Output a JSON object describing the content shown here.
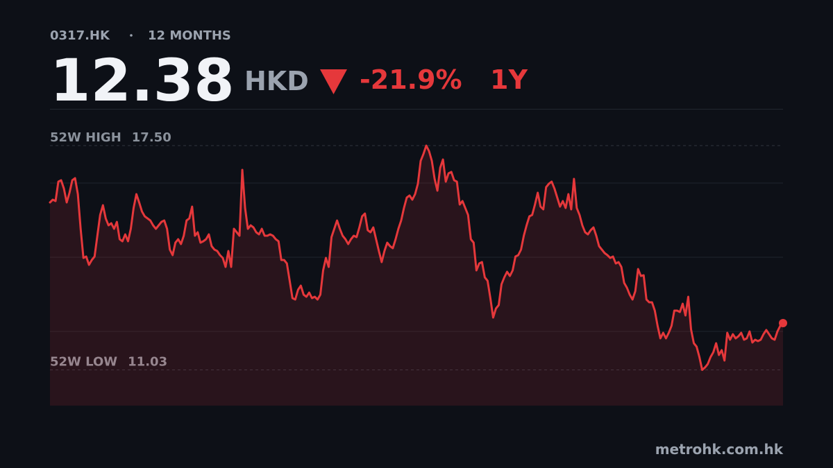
{
  "chart_data": {
    "type": "line",
    "ticker": "0317.HK",
    "period": "12 MONTHS",
    "price": 12.38,
    "currency": "HKD",
    "change": "-21.9%",
    "change_period": "1Y",
    "source": "metrohk.com.hk",
    "color": "#e5383b",
    "ylim": [
      10,
      18.56
    ],
    "grid": true,
    "reference_lines": [
      {
        "name": "52W HIGH",
        "value": 17.5,
        "value_label": "17.50"
      },
      {
        "name": "52W LOW",
        "value": 11.03
      }
    ],
    "values": [
      15.86,
      15.94,
      15.9,
      16.46,
      16.5,
      16.26,
      15.86,
      16.14,
      16.5,
      16.56,
      16.1,
      15.1,
      14.26,
      14.3,
      14.06,
      14.2,
      14.3,
      14.9,
      15.5,
      15.78,
      15.4,
      15.2,
      15.26,
      15.1,
      15.3,
      14.8,
      14.74,
      14.94,
      14.74,
      15.1,
      15.7,
      16.1,
      15.86,
      15.6,
      15.46,
      15.4,
      15.34,
      15.2,
      15.1,
      15.2,
      15.3,
      15.34,
      15.1,
      14.5,
      14.34,
      14.7,
      14.8,
      14.66,
      14.9,
      15.34,
      15.4,
      15.74,
      14.9,
      15.0,
      14.7,
      14.74,
      14.8,
      14.94,
      14.6,
      14.5,
      14.46,
      14.34,
      14.26,
      14.0,
      14.46,
      14.0,
      15.1,
      15.0,
      14.9,
      16.8,
      15.7,
      15.1,
      15.2,
      15.14,
      15.0,
      14.94,
      15.1,
      14.9,
      14.9,
      14.94,
      14.9,
      14.8,
      14.74,
      14.2,
      14.2,
      14.1,
      13.6,
      13.1,
      13.06,
      13.34,
      13.46,
      13.2,
      13.14,
      13.26,
      13.1,
      13.14,
      13.06,
      13.2,
      13.9,
      14.26,
      14.0,
      14.86,
      15.1,
      15.34,
      15.1,
      14.9,
      14.8,
      14.66,
      14.8,
      14.9,
      14.86,
      15.14,
      15.46,
      15.54,
      15.06,
      15.0,
      15.14,
      14.8,
      14.46,
      14.14,
      14.46,
      14.7,
      14.6,
      14.54,
      14.8,
      15.1,
      15.34,
      15.7,
      16.0,
      16.06,
      15.94,
      16.1,
      16.4,
      17.06,
      17.26,
      17.5,
      17.34,
      17.06,
      16.54,
      16.2,
      16.86,
      17.1,
      16.46,
      16.7,
      16.74,
      16.5,
      16.46,
      15.8,
      15.9,
      15.7,
      15.5,
      14.8,
      14.7,
      13.9,
      14.1,
      14.14,
      13.7,
      13.6,
      13.1,
      12.54,
      12.8,
      12.9,
      13.5,
      13.7,
      13.86,
      13.74,
      13.9,
      14.3,
      14.34,
      14.5,
      14.9,
      15.2,
      15.46,
      15.5,
      15.8,
      16.14,
      15.74,
      15.66,
      16.3,
      16.4,
      16.46,
      16.26,
      16.0,
      15.74,
      15.9,
      15.7,
      16.1,
      15.66,
      16.54,
      15.7,
      15.5,
      15.2,
      15.0,
      14.94,
      15.06,
      15.14,
      14.9,
      14.6,
      14.5,
      14.4,
      14.34,
      14.26,
      14.3,
      14.1,
      14.14,
      14.0,
      13.54,
      13.4,
      13.2,
      13.06,
      13.3,
      13.94,
      13.74,
      13.76,
      13.06,
      12.98,
      12.98,
      12.74,
      12.3,
      11.94,
      12.1,
      11.94,
      12.1,
      12.3,
      12.74,
      12.74,
      12.7,
      12.94,
      12.6,
      13.14,
      12.2,
      11.8,
      11.7,
      11.4,
      11.03,
      11.1,
      11.2,
      11.4,
      11.54,
      11.8,
      11.46,
      11.6,
      11.3,
      12.1,
      11.9,
      12.06,
      11.94,
      12.0,
      12.1,
      11.9,
      11.94,
      12.14,
      11.82,
      11.9,
      11.86,
      11.9,
      12.06,
      12.18,
      12.06,
      11.94,
      11.9,
      12.14,
      12.3,
      12.38
    ]
  }
}
